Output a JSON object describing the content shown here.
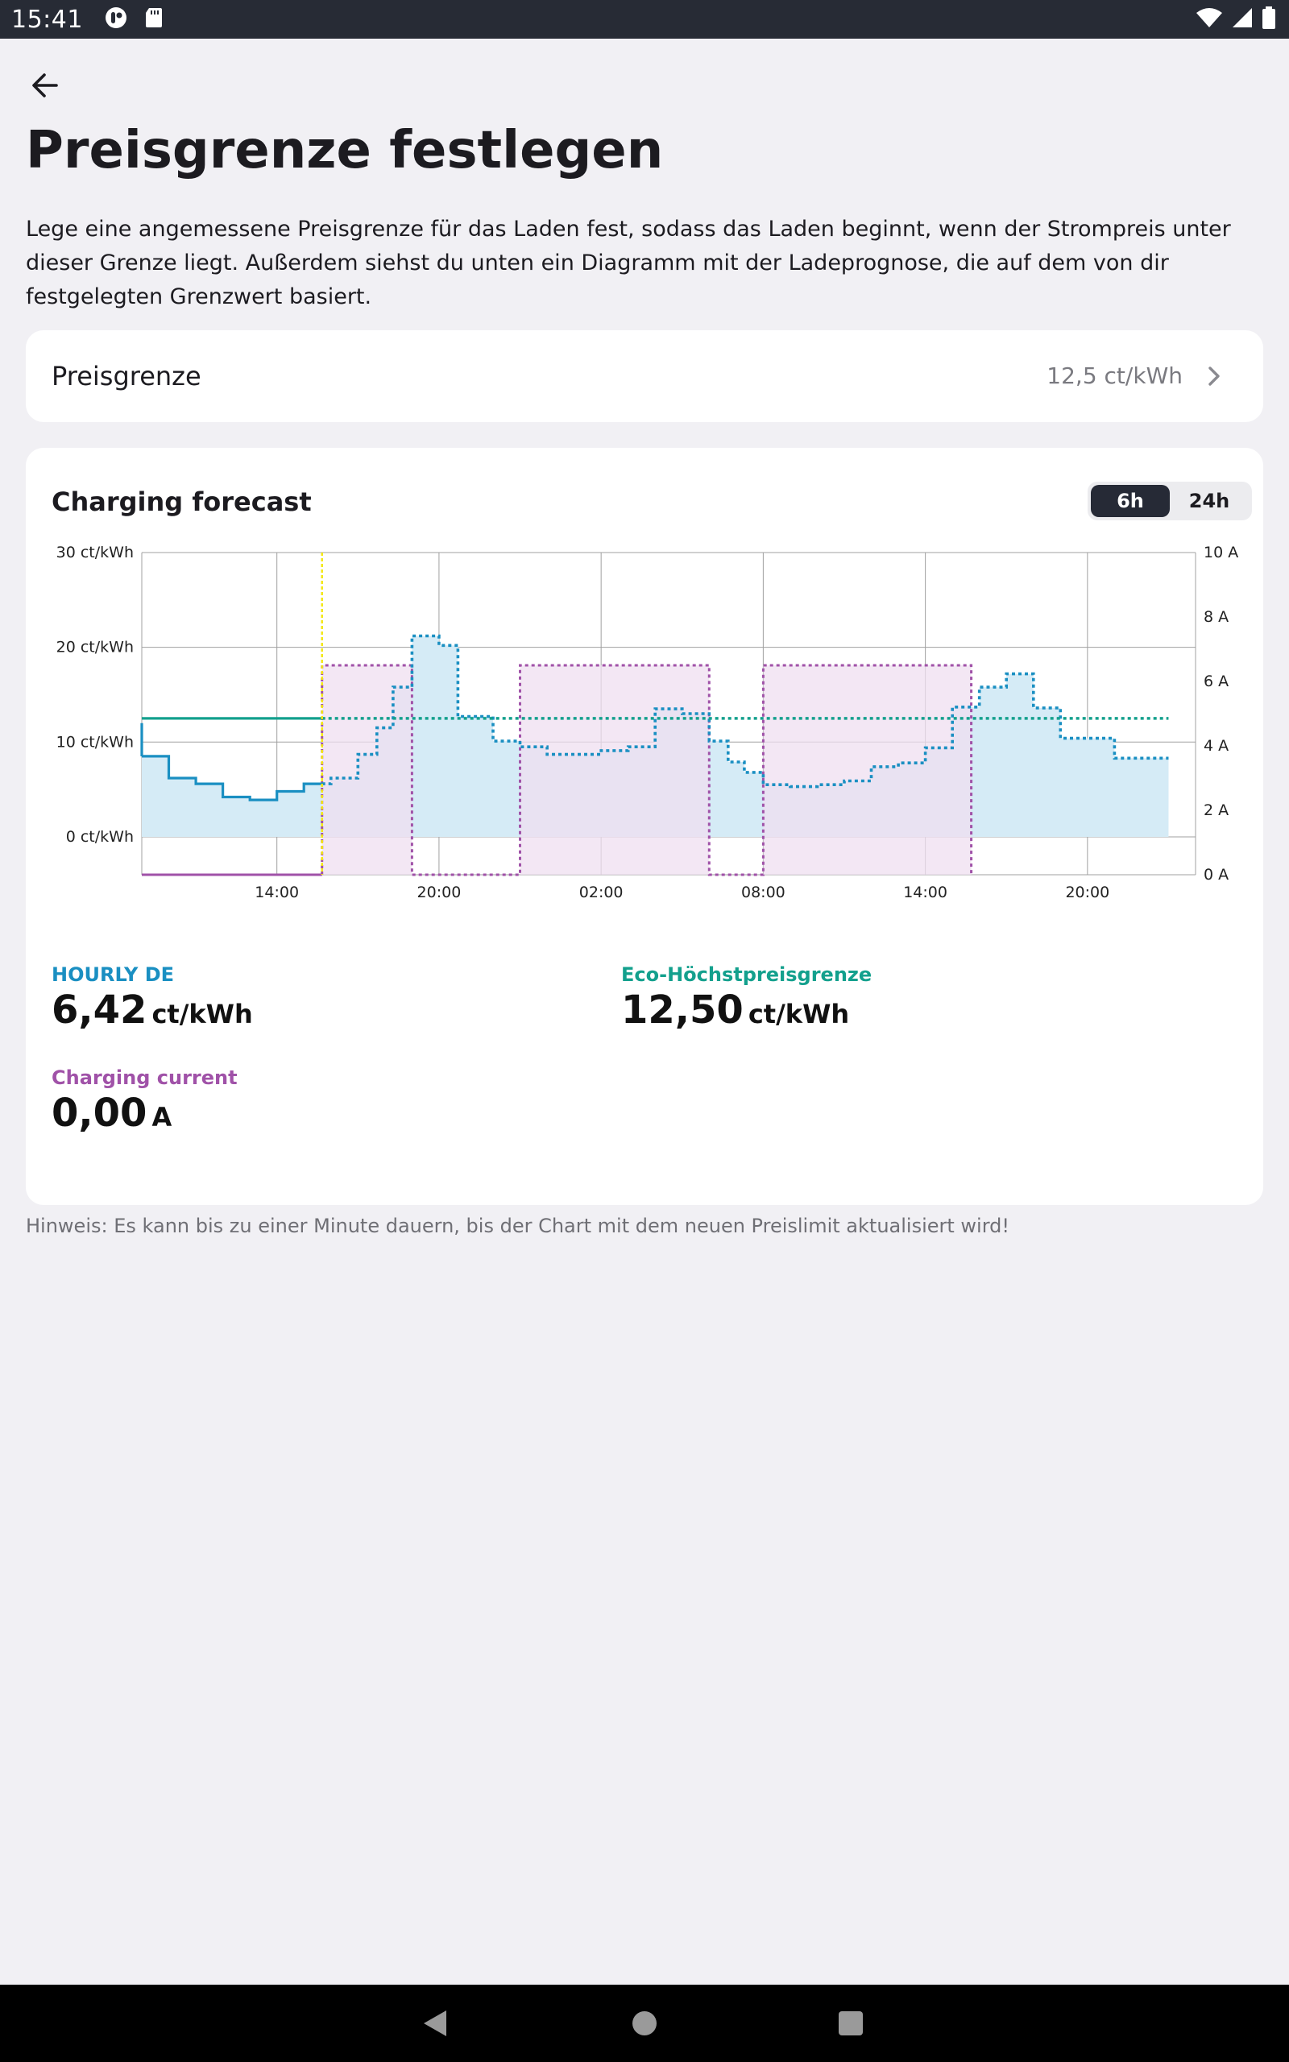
{
  "status_bar": {
    "time": "15:41",
    "icons": [
      "cloud-notification-icon",
      "sd-card-icon",
      "wifi-icon",
      "signal-icon",
      "battery-icon"
    ]
  },
  "header": {
    "back_icon": "arrow-left-icon",
    "title": "Preisgrenze festlegen",
    "description": "Lege eine angemessene Preisgrenze für das Laden fest, sodass das Laden beginnt, wenn der Strompreis unter dieser Grenze liegt. Außerdem siehst du unten ein Diagramm mit der Ladeprognose, die auf dem von dir festgelegten Grenzwert basiert."
  },
  "price_limit": {
    "label": "Preisgrenze",
    "value": "12,5 ct/kWh",
    "icon": "chevron-right-icon"
  },
  "forecast": {
    "title": "Charging forecast",
    "ranges": [
      "6h",
      "24h"
    ],
    "selected_range": "6h",
    "metrics": [
      {
        "label": "HOURLY DE",
        "value": "6,42",
        "unit": "ct/kWh",
        "color": "#1a8fc2"
      },
      {
        "label": "Eco-Höchstpreisgrenze",
        "value": "12,50",
        "unit": "ct/kWh",
        "color": "#13a08d"
      },
      {
        "label": "Charging current",
        "value": "0,00",
        "unit": "A",
        "color": "#a052a8"
      }
    ]
  },
  "chart_data": {
    "type": "line",
    "left_axis": {
      "ticks": [
        "30 ct/kWh",
        "20 ct/kWh",
        "10 ct/kWh",
        "0 ct/kWh"
      ],
      "ylim": [
        -4,
        30
      ],
      "unit": "ct/kWh"
    },
    "right_axis": {
      "ticks": [
        "10 A",
        "8 A",
        "6 A",
        "4 A",
        "2 A",
        "0 A"
      ],
      "ylim": [
        0,
        10
      ],
      "unit": "A"
    },
    "x_ticks": [
      "14:00",
      "20:00",
      "02:00",
      "08:00",
      "14:00",
      "20:00"
    ],
    "x_range_hours": [
      9,
      48
    ],
    "now_hour": 15.67,
    "colors": {
      "price": "#1a8fc2",
      "price_fill": "#d5ebf6",
      "limit": "#13a08d",
      "current": "#a052a8",
      "current_fill": "#efdff0",
      "now": "#f4e813",
      "grid": "#a0a0a0"
    },
    "series": [
      {
        "name": "HOURLY DE",
        "step_x": [
          9.0,
          10.0,
          11.0,
          12.0,
          13.0,
          14.0,
          15.0,
          15.67,
          16.0,
          17.0,
          17.7,
          18.3,
          19.0,
          20.0,
          20.7,
          22.0,
          23.0,
          24.0,
          25.0,
          26.0,
          27.0,
          28.0,
          29.0,
          30.0,
          30.7,
          31.3,
          32.0,
          33.0,
          34.0,
          35.0,
          36.0,
          37.0,
          38.0,
          39.0,
          40.0,
          41.0,
          42.0,
          43.0,
          44.0,
          45.0,
          46.0,
          47.0
        ],
        "values": [
          8.5,
          6.2,
          5.6,
          4.2,
          3.9,
          4.8,
          5.6,
          5.6,
          6.2,
          8.7,
          11.5,
          15.8,
          21.2,
          20.2,
          12.7,
          10.1,
          9.5,
          8.7,
          8.7,
          9.1,
          9.5,
          13.5,
          13.0,
          10.1,
          7.9,
          6.8,
          5.5,
          5.3,
          5.5,
          5.9,
          7.4,
          7.8,
          9.4,
          13.7,
          15.8,
          17.2,
          13.6,
          10.4,
          10.4,
          8.3,
          8.3,
          8.3
        ],
        "end_x": 47.0,
        "solid_until": 15.67
      },
      {
        "name": "Eco-Höchstpreisgrenze",
        "value": 12.5,
        "solid_until": 15.67,
        "end_x": 47.0
      },
      {
        "name": "Charging current",
        "step_x": [
          9.0,
          15.67,
          19.0,
          23.0,
          30.0,
          32.0,
          39.7
        ],
        "values": [
          0,
          6.5,
          0,
          6.5,
          0,
          6.5,
          0
        ],
        "end_x": 39.7
      }
    ]
  },
  "note": "Hinweis: Es kann bis zu einer Minute dauern, bis der Chart mit dem neuen Preislimit aktualisiert wird!",
  "nav_bar": {
    "buttons": [
      "back-icon",
      "home-icon",
      "recents-icon"
    ]
  }
}
